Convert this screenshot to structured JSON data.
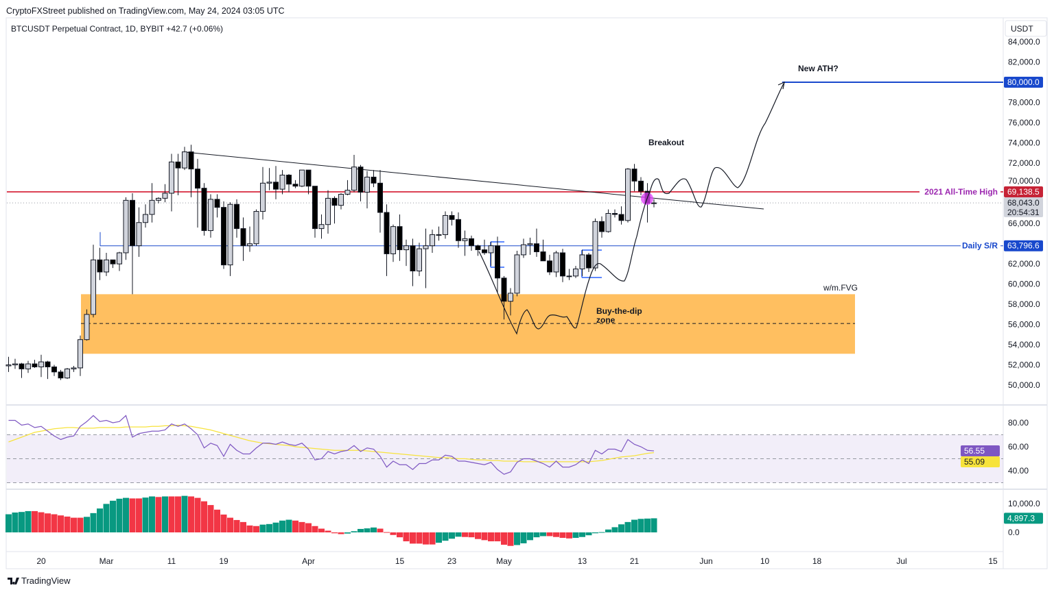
{
  "header": {
    "published": "CryptoFXStreet published on TradingView.com, May 24, 2024 03:05 UTC",
    "symbol_line": "BTCUSDT Perpetual Contract, 1D, BYBIT  +42.7 (+0.06%)",
    "currency": "USDT"
  },
  "footer": {
    "logo_text": "TradingView"
  },
  "colors": {
    "up": "#d1d4dc",
    "down": "#000000",
    "ath_line": "#d0021b",
    "sr_line": "#1848cc",
    "target_line": "#1848cc",
    "zone": "#ffbf60",
    "rsi": "#7e57c2",
    "rsi_ma": "#f7e33b",
    "hist_up": "#089981",
    "hist_down": "#f23645",
    "ath_label": "#9c27b0"
  },
  "annotations": {
    "new_ath": "New ATH?",
    "breakout": "Breakout",
    "ath_label": "2021 All-Time High",
    "sr_label": "Daily S/R",
    "fvg_label": "w/m.FVG",
    "zone_label_1": "Buy-the-dip",
    "zone_label_2": "zone"
  },
  "price_tags": {
    "target": "80,000.0",
    "ath": "69,138.5",
    "last": "68,043.0",
    "countdown": "20:54:31",
    "sr": "63,796.6",
    "rsi": "56.55",
    "rsi_ma": "55.09",
    "hist": "4,897.3"
  },
  "chart_data": [
    {
      "type": "candlestick",
      "title": "BTCUSDT Perpetual Contract, 1D, BYBIT",
      "ylim": [
        48500,
        85000
      ],
      "y_ticks": [
        "84,000.0",
        "82,000.0",
        "80,000.0",
        "78,000.0",
        "76,000.0",
        "74,000.0",
        "72,000.0",
        "70,000.0",
        "66,000.0",
        "62,000.0",
        "60,000.0",
        "58,000.0",
        "56,000.0",
        "54,000.0",
        "52,000.0",
        "50,000.0"
      ],
      "x_ticks": [
        [
          "2024-02-20",
          "20"
        ],
        [
          "2024-03-01",
          "Mar"
        ],
        [
          "2024-03-11",
          "11"
        ],
        [
          "2024-03-19",
          "19"
        ],
        [
          "2024-04-01",
          "Apr"
        ],
        [
          "2024-04-15",
          "15"
        ],
        [
          "2024-04-23",
          "23"
        ],
        [
          "2024-05-01",
          "May"
        ],
        [
          "2024-05-13",
          "13"
        ],
        [
          "2024-05-21",
          "21"
        ],
        [
          "2024-06-01",
          "Jun"
        ],
        [
          "2024-06-10",
          "10"
        ],
        [
          "2024-06-18",
          "18"
        ],
        [
          "2024-07-01",
          "Jul"
        ],
        [
          "2024-07-15",
          "15"
        ]
      ],
      "levels": {
        "ath_2021": 69138.5,
        "daily_sr": 63796.6,
        "target": 80000,
        "last": 68043,
        "fvg_zone": [
          53100,
          59000
        ],
        "fvg_mid": 56100
      },
      "ohlc": [
        [
          "2024-02-15",
          51900,
          52800,
          51300,
          52000
        ],
        [
          "2024-02-16",
          52000,
          52600,
          51600,
          52100
        ],
        [
          "2024-02-17",
          52100,
          52200,
          50700,
          51600
        ],
        [
          "2024-02-18",
          51600,
          52400,
          51200,
          52100
        ],
        [
          "2024-02-19",
          52100,
          52500,
          51700,
          51800
        ],
        [
          "2024-02-20",
          51800,
          53000,
          50800,
          52300
        ],
        [
          "2024-02-21",
          52300,
          52400,
          50600,
          51800
        ],
        [
          "2024-02-22",
          51800,
          52000,
          50900,
          51300
        ],
        [
          "2024-02-23",
          51300,
          51500,
          50500,
          50700
        ],
        [
          "2024-02-24",
          50700,
          51700,
          50600,
          51600
        ],
        [
          "2024-02-25",
          51600,
          51900,
          51300,
          51700
        ],
        [
          "2024-02-26",
          51700,
          54900,
          50900,
          54500
        ],
        [
          "2024-02-27",
          54500,
          57500,
          54400,
          57000
        ],
        [
          "2024-02-28",
          57000,
          63900,
          56700,
          62400
        ],
        [
          "2024-02-29",
          62400,
          63600,
          60400,
          61200
        ],
        [
          "2024-03-01",
          61200,
          63100,
          60800,
          62400
        ],
        [
          "2024-03-02",
          62400,
          62400,
          61600,
          62000
        ],
        [
          "2024-03-03",
          62000,
          63200,
          61300,
          63100
        ],
        [
          "2024-03-04",
          63100,
          68600,
          62400,
          68300
        ],
        [
          "2024-03-05",
          68300,
          69000,
          59000,
          63800
        ],
        [
          "2024-03-06",
          63800,
          67600,
          62700,
          66100
        ],
        [
          "2024-03-07",
          66100,
          67900,
          65600,
          66900
        ],
        [
          "2024-03-08",
          66900,
          70000,
          66100,
          68300
        ],
        [
          "2024-03-09",
          68300,
          68600,
          68000,
          68500
        ],
        [
          "2024-03-10",
          68500,
          69900,
          68100,
          69000
        ],
        [
          "2024-03-11",
          69000,
          72900,
          67200,
          72100
        ],
        [
          "2024-03-12",
          72100,
          72900,
          68800,
          71500
        ],
        [
          "2024-03-13",
          71500,
          73600,
          71300,
          73100
        ],
        [
          "2024-03-14",
          73100,
          73800,
          68600,
          71400
        ],
        [
          "2024-03-15",
          71400,
          72400,
          65600,
          69500
        ],
        [
          "2024-03-16",
          69500,
          70000,
          64800,
          65300
        ],
        [
          "2024-03-17",
          65300,
          68900,
          64600,
          68400
        ],
        [
          "2024-03-18",
          68400,
          68900,
          66600,
          67600
        ],
        [
          "2024-03-19",
          67600,
          68200,
          61500,
          61900
        ],
        [
          "2024-03-20",
          61900,
          68100,
          60800,
          67900
        ],
        [
          "2024-03-21",
          67900,
          68400,
          64600,
          65500
        ],
        [
          "2024-03-22",
          65500,
          66600,
          62300,
          63800
        ],
        [
          "2024-03-23",
          63800,
          65700,
          63200,
          64000
        ],
        [
          "2024-03-24",
          64000,
          67400,
          63800,
          67200
        ],
        [
          "2024-03-25",
          67200,
          71600,
          66400,
          70000
        ],
        [
          "2024-03-26",
          70000,
          71500,
          69300,
          70100
        ],
        [
          "2024-03-27",
          70100,
          71700,
          68400,
          69400
        ],
        [
          "2024-03-28",
          69400,
          71300,
          68900,
          70800
        ],
        [
          "2024-03-29",
          70800,
          70900,
          69100,
          69900
        ],
        [
          "2024-03-30",
          69900,
          70300,
          69500,
          69700
        ],
        [
          "2024-03-31",
          69700,
          71300,
          69600,
          71300
        ],
        [
          "2024-04-01",
          71300,
          71300,
          68900,
          69700
        ],
        [
          "2024-04-02",
          69700,
          69700,
          64600,
          65500
        ],
        [
          "2024-04-03",
          65500,
          66900,
          64500,
          65900
        ],
        [
          "2024-04-04",
          65900,
          69300,
          65000,
          68500
        ],
        [
          "2024-04-05",
          68500,
          68700,
          66000,
          67800
        ],
        [
          "2024-04-06",
          67800,
          69000,
          67400,
          68900
        ],
        [
          "2024-04-07",
          68900,
          70300,
          68800,
          69300
        ],
        [
          "2024-04-08",
          69300,
          72800,
          69100,
          71600
        ],
        [
          "2024-04-09",
          71600,
          71800,
          68200,
          69100
        ],
        [
          "2024-04-10",
          69100,
          71200,
          67500,
          70600
        ],
        [
          "2024-04-11",
          70600,
          71300,
          69600,
          70000
        ],
        [
          "2024-04-12",
          70000,
          71300,
          65100,
          67100
        ],
        [
          "2024-04-13",
          67100,
          67900,
          60800,
          63000
        ],
        [
          "2024-04-14",
          63000,
          65900,
          62200,
          65700
        ],
        [
          "2024-04-15",
          65700,
          66900,
          62300,
          63400
        ],
        [
          "2024-04-16",
          63400,
          64400,
          61800,
          63800
        ],
        [
          "2024-04-17",
          63800,
          64500,
          59800,
          61300
        ],
        [
          "2024-04-18",
          61300,
          64100,
          60800,
          63500
        ],
        [
          "2024-04-19",
          63500,
          65500,
          59600,
          63800
        ],
        [
          "2024-04-20",
          63800,
          65400,
          63100,
          64900
        ],
        [
          "2024-04-21",
          64900,
          65700,
          64300,
          64900
        ],
        [
          "2024-04-22",
          64900,
          67200,
          64500,
          66800
        ],
        [
          "2024-04-23",
          66800,
          67200,
          65800,
          66400
        ],
        [
          "2024-04-24",
          66400,
          67100,
          63600,
          64300
        ],
        [
          "2024-04-25",
          64300,
          65300,
          62800,
          64500
        ],
        [
          "2024-04-26",
          64500,
          64800,
          63300,
          63800
        ],
        [
          "2024-04-27",
          63800,
          63900,
          62800,
          63400
        ],
        [
          "2024-04-28",
          63400,
          64400,
          62900,
          63100
        ],
        [
          "2024-04-29",
          63100,
          64200,
          61800,
          63800
        ],
        [
          "2024-04-30",
          63800,
          64700,
          59100,
          60600
        ],
        [
          "2024-05-01",
          60600,
          60800,
          56500,
          58300
        ],
        [
          "2024-05-02",
          58300,
          59600,
          56900,
          59100
        ],
        [
          "2024-05-03",
          59100,
          63300,
          58800,
          62900
        ],
        [
          "2024-05-04",
          62900,
          64500,
          62600,
          63900
        ],
        [
          "2024-05-05",
          63900,
          64600,
          62900,
          64000
        ],
        [
          "2024-05-06",
          64000,
          65500,
          62700,
          63200
        ],
        [
          "2024-05-07",
          63200,
          64400,
          62300,
          62300
        ],
        [
          "2024-05-08",
          62300,
          62900,
          60900,
          61200
        ],
        [
          "2024-05-09",
          61200,
          63300,
          60700,
          63100
        ],
        [
          "2024-05-10",
          63100,
          63500,
          60200,
          60800
        ],
        [
          "2024-05-11",
          60800,
          61500,
          60400,
          60800
        ],
        [
          "2024-05-12",
          60800,
          61800,
          60600,
          61500
        ],
        [
          "2024-05-13",
          61500,
          63400,
          60800,
          62900
        ],
        [
          "2024-05-14",
          62900,
          63100,
          61200,
          61600
        ],
        [
          "2024-05-15",
          61600,
          66500,
          61300,
          66200
        ],
        [
          "2024-05-16",
          66200,
          66700,
          64600,
          65200
        ],
        [
          "2024-05-17",
          65200,
          67400,
          65100,
          67000
        ],
        [
          "2024-05-18",
          67000,
          67400,
          66600,
          66900
        ],
        [
          "2024-05-19",
          66900,
          67700,
          65900,
          66300
        ],
        [
          "2024-05-20",
          66300,
          71500,
          66100,
          71400
        ],
        [
          "2024-05-21",
          71400,
          71900,
          69200,
          70200
        ],
        [
          "2024-05-22",
          70200,
          70600,
          68800,
          69200
        ],
        [
          "2024-05-23",
          69200,
          70000,
          66100,
          68000
        ],
        [
          "2024-05-24",
          68000,
          68400,
          67600,
          68043
        ]
      ]
    },
    {
      "type": "line",
      "title": "RSI",
      "ylim": [
        25,
        95
      ],
      "y_ticks": [
        "80.00",
        "60.00",
        "40.00"
      ],
      "bands": [
        70,
        50,
        30
      ],
      "rsi": [
        82,
        82,
        78,
        79,
        76,
        77,
        73,
        69,
        66,
        68,
        69,
        77,
        81,
        86,
        81,
        82,
        80,
        81,
        86,
        68,
        71,
        72,
        73,
        73,
        74,
        79,
        77,
        79,
        75,
        70,
        59,
        63,
        61,
        52,
        62,
        57,
        54,
        54,
        59,
        63,
        63,
        62,
        64,
        62,
        61,
        63,
        58,
        49,
        50,
        56,
        54,
        56,
        57,
        61,
        56,
        59,
        58,
        52,
        43,
        48,
        45,
        45,
        41,
        46,
        46,
        49,
        49,
        53,
        52,
        48,
        48,
        47,
        46,
        45,
        47,
        41,
        37,
        39,
        47,
        50,
        50,
        48,
        46,
        43,
        48,
        43,
        43,
        45,
        49,
        46,
        57,
        54,
        58,
        58,
        56,
        66,
        62,
        60,
        57,
        56.55
      ],
      "rsi_ma": [
        64,
        66,
        68,
        70,
        72,
        73,
        74,
        75,
        75.5,
        76,
        76,
        75.5,
        75.5,
        75.5,
        76,
        76,
        76,
        76,
        76.5,
        76.5,
        76.5,
        76.5,
        77,
        77,
        77.5,
        77.5,
        78,
        77.5,
        77,
        76,
        75,
        74,
        72.5,
        71,
        69.5,
        68,
        66.5,
        65,
        64,
        63,
        62.5,
        62,
        61.5,
        61,
        60,
        59.5,
        59,
        58.5,
        58,
        57.5,
        57,
        57,
        57,
        57,
        57,
        56.5,
        56,
        55.5,
        55,
        54.5,
        54,
        53.5,
        53,
        52.5,
        52,
        51.5,
        51,
        51,
        50.5,
        50,
        50,
        49.5,
        49,
        49,
        48.5,
        48.5,
        48,
        48,
        48,
        47.5,
        47.5,
        47.5,
        47.5,
        47.5,
        47.5,
        47.5,
        47.5,
        47.5,
        47.5,
        47.5,
        48,
        48.5,
        49.5,
        50.5,
        51.5,
        52,
        52.5,
        53.5,
        54.5,
        55.09
      ]
    },
    {
      "type": "bar",
      "title": "Histogram",
      "ylim": [
        -6000,
        14000
      ],
      "y_ticks": [
        "10,000.0",
        "0.0"
      ],
      "values": [
        6300,
        6900,
        7100,
        7400,
        7400,
        7000,
        6600,
        6300,
        5900,
        5500,
        5100,
        5100,
        5400,
        6700,
        8300,
        9900,
        11000,
        11700,
        12000,
        11800,
        11800,
        12100,
        12500,
        12300,
        12500,
        12500,
        12500,
        12700,
        12500,
        12000,
        10800,
        9500,
        7900,
        6200,
        5100,
        4300,
        3600,
        2400,
        2200,
        2700,
        2900,
        3400,
        4100,
        4400,
        4100,
        3600,
        3200,
        2200,
        1300,
        600,
        -300,
        -600,
        -400,
        400,
        1200,
        1400,
        1700,
        1300,
        100,
        -900,
        -1700,
        -3100,
        -3900,
        -3900,
        -4200,
        -4200,
        -3600,
        -2900,
        -2200,
        -1500,
        -1600,
        -1700,
        -2300,
        -2700,
        -3100,
        -3100,
        -4300,
        -4700,
        -4400,
        -3800,
        -2700,
        -1700,
        -1300,
        -1300,
        -1600,
        -1900,
        -2100,
        -1900,
        -1600,
        -1000,
        -300,
        100,
        1000,
        1800,
        2800,
        3600,
        4400,
        4700,
        4800,
        4897.3
      ]
    }
  ]
}
